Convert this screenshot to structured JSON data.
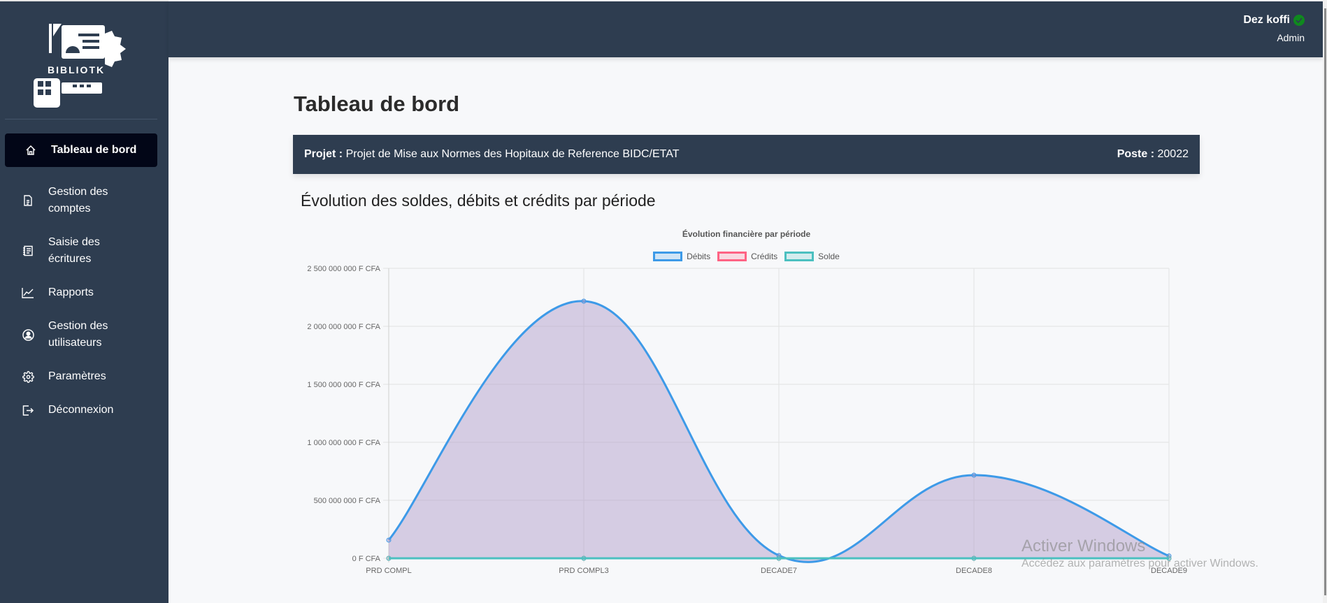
{
  "app": {
    "logo_text": "BIBLIOTK"
  },
  "sidebar": {
    "items": [
      {
        "label": "Tableau de bord",
        "icon": "home-icon",
        "active": true
      },
      {
        "label": "Gestion des comptes",
        "line1": "Gestion des",
        "line2": "comptes",
        "icon": "document-icon"
      },
      {
        "label": "Saisie des écritures",
        "line1": "Saisie des",
        "line2": "écritures",
        "icon": "notebook-icon"
      },
      {
        "label": "Rapports",
        "icon": "line-chart-icon"
      },
      {
        "label": "Gestion des utilisateurs",
        "line1": "Gestion des",
        "line2": "utilisateurs",
        "icon": "user-circle-icon"
      },
      {
        "label": "Paramètres",
        "icon": "gear-icon"
      },
      {
        "label": "Déconnexion",
        "icon": "logout-icon"
      }
    ]
  },
  "header": {
    "user_name": "Dez koffi",
    "user_role": "Admin",
    "status_icon": "check-circle-icon",
    "status_color": "#0f8a1e"
  },
  "main": {
    "page_title": "Tableau de bord",
    "project_label": "Projet :",
    "project_value": "Projet de Mise aux Normes des Hopitaux de Reference BIDC/ETAT",
    "poste_label": "Poste :",
    "poste_value": "20022",
    "section_title": "Évolution des soldes, débits et crédits par période"
  },
  "chart_data": {
    "type": "line",
    "title": "Évolution financière par période",
    "xlabel": "",
    "ylabel": "",
    "categories": [
      "PRD COMPL",
      "PRD COMPL3",
      "DECADE7",
      "DECADE8",
      "DECADE9"
    ],
    "series": [
      {
        "name": "Débits",
        "color": "#3d9ae8",
        "fill": "rgba(170,150,200,0.45)",
        "values": [
          157000000,
          2217000000,
          24000000,
          717000000,
          20000000
        ]
      },
      {
        "name": "Crédits",
        "color": "#ff6384",
        "fill": "rgba(255,99,132,0.2)",
        "values": [
          0,
          0,
          0,
          0,
          0
        ]
      },
      {
        "name": "Solde",
        "color": "#4bc0c0",
        "fill": "rgba(75,192,192,0.2)",
        "values": [
          0,
          0,
          0,
          0,
          0
        ]
      }
    ],
    "y_ticks": [
      "0 F CFA",
      "500 000 000 F CFA",
      "1 000 000 000 F CFA",
      "1 500 000 000 F CFA",
      "2 000 000 000 F CFA",
      "2 500 000 000 F CFA"
    ],
    "ylim": [
      0,
      2500000000
    ],
    "grid": true,
    "legend_position": "top"
  },
  "watermark": {
    "line1": "Activer Windows",
    "line2": "Accédez aux paramètres pour activer Windows."
  }
}
